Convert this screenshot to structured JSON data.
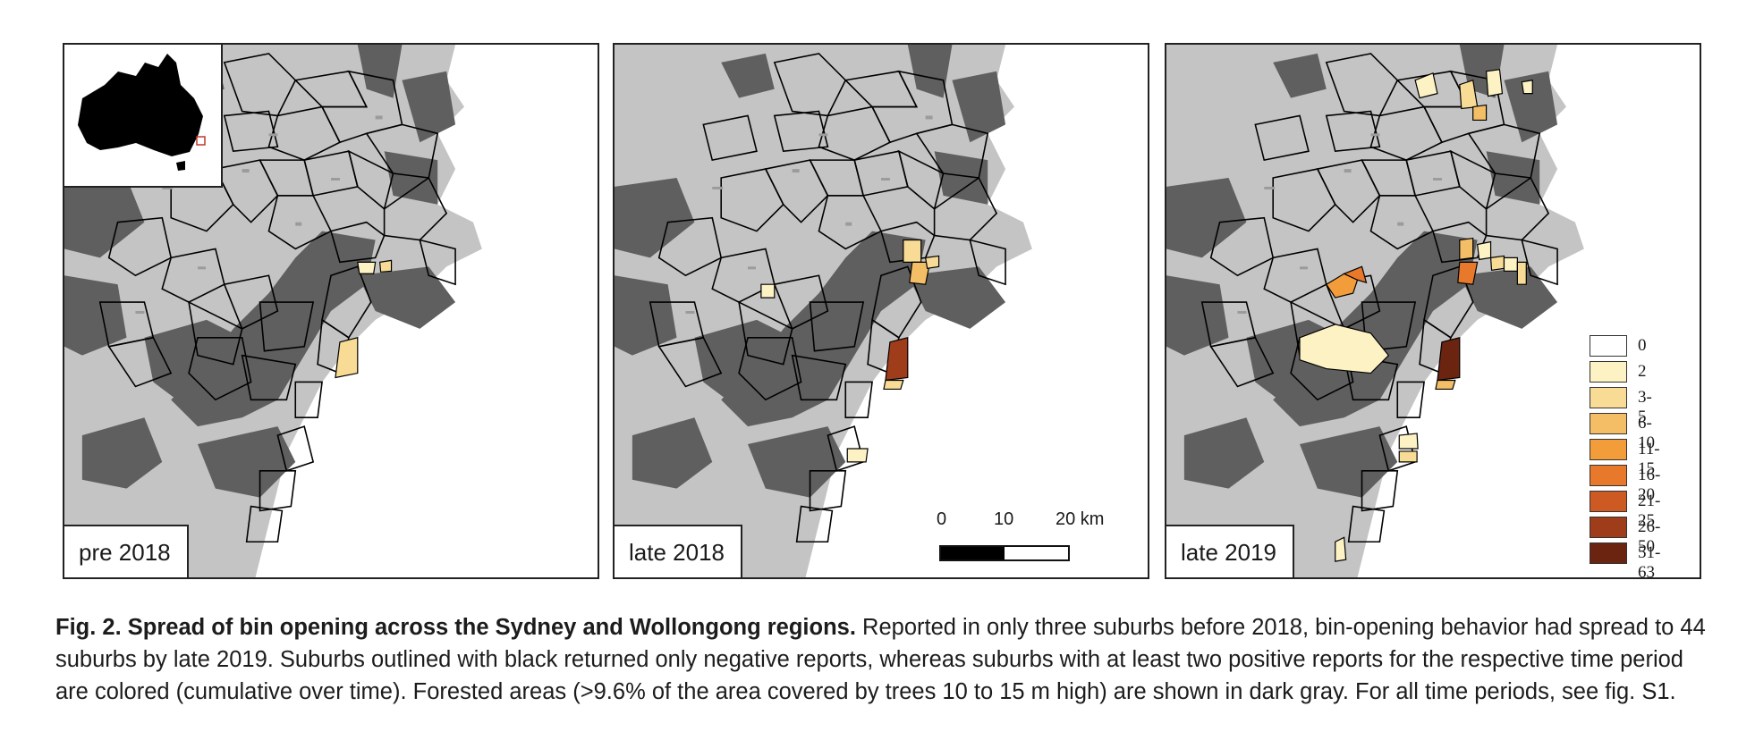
{
  "panels": [
    {
      "label": "pre 2018"
    },
    {
      "label": "late 2018"
    },
    {
      "label": "late 2019"
    }
  ],
  "scale_bar": {
    "ticks": [
      "0",
      "10",
      "20 km"
    ]
  },
  "legend": {
    "items": [
      {
        "label": "0",
        "color": "#ffffff"
      },
      {
        "label": "2",
        "color": "#fdf2c4"
      },
      {
        "label": "3-5",
        "color": "#f8dc95"
      },
      {
        "label": "6-10",
        "color": "#f4be66"
      },
      {
        "label": "11-15",
        "color": "#f39c3a"
      },
      {
        "label": "16-20",
        "color": "#e8792a"
      },
      {
        "label": "21-25",
        "color": "#cd5a22"
      },
      {
        "label": "26-50",
        "color": "#9f3d1b"
      },
      {
        "label": "51-63",
        "color": "#6b2410"
      }
    ]
  },
  "colors": {
    "forest": "#5f5f5f",
    "urban": "#c4c4c4",
    "ocean": "#ffffff",
    "outline": "#000000",
    "inset_highlight": "#c0392b"
  },
  "caption": {
    "title": "Fig. 2. Spread of bin opening across the Sydney and Wollongong regions.",
    "body": " Reported in only three suburbs before 2018, bin-opening behavior had spread to 44 suburbs by late 2019. Suburbs outlined with black returned only negative reports, whereas suburbs with at least two positive reports for the respective time period are colored (cumulative over time). Forested areas (>9.6% of the area covered by trees 10 to 15 m high) are shown in dark gray. For all time periods, see fig. S1."
  }
}
